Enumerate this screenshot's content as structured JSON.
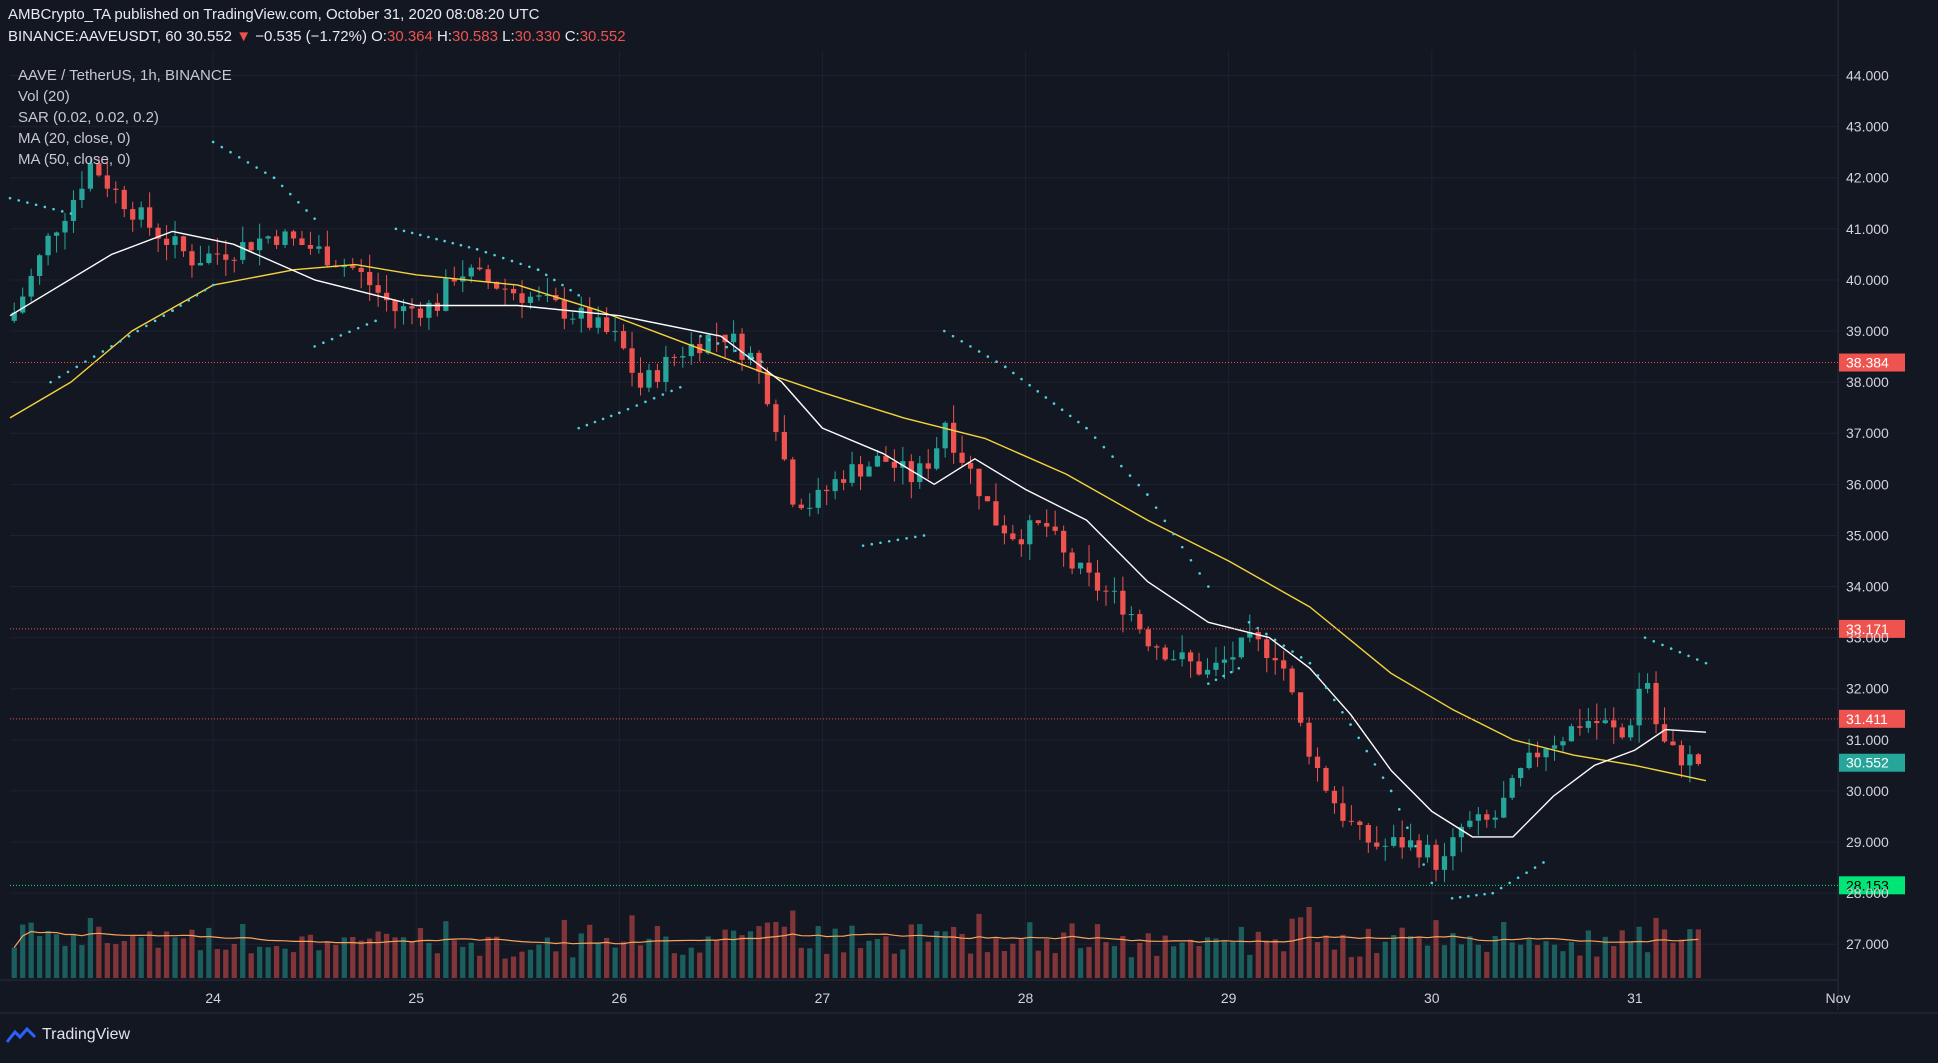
{
  "header": {
    "publisher": "AMBCrypto_TA published on TradingView.com, October 31, 2020 08:08:20 UTC",
    "symbol": "BINANCE:AAVEUSDT, 60",
    "last": "30.552",
    "change_arrow": "▼",
    "change": "−0.535 (−1.72%)",
    "o_label": "O:",
    "o": "30.364",
    "h_label": "H:",
    "h": "30.583",
    "l_label": "L:",
    "l": "30.330",
    "c_label": "C:",
    "c": "30.552"
  },
  "legend": {
    "title": "AAVE / TetherUS, 1h, BINANCE",
    "vol": "Vol (20)",
    "sar": "SAR (0.02, 0.02, 0.2)",
    "ma20": "MA (20, close, 0)",
    "ma50": "MA (50, close, 0)"
  },
  "footer": {
    "brand": "TradingView"
  },
  "colors": {
    "background": "#131722",
    "up": "#26a69a",
    "down": "#ef5350",
    "ma20": "#ffffff",
    "ma50": "#f5d33b",
    "sar": "#4dd0e1",
    "vol_ma": "#f7a35c",
    "green_level": "#00e676"
  },
  "chart_data": {
    "type": "candlestick",
    "title": "AAVE / TetherUS, 1h, BINANCE",
    "ylim": [
      26.3,
      44.5
    ],
    "y_ticks": [
      "44.000",
      "43.000",
      "42.000",
      "41.000",
      "40.000",
      "39.000",
      "38.000",
      "37.000",
      "36.000",
      "35.000",
      "34.000",
      "33.000",
      "32.000",
      "31.000",
      "30.000",
      "29.000",
      "28.000",
      "27.000"
    ],
    "x_ticks": [
      "24",
      "25",
      "26",
      "27",
      "28",
      "29",
      "30",
      "31",
      "Nov"
    ],
    "x_range_days": [
      23.0,
      32.0
    ],
    "horizontal_levels": [
      {
        "value": 38.384,
        "label": "38.384",
        "color": "#ef5350",
        "style": "dotted"
      },
      {
        "value": 33.171,
        "label": "33.171",
        "color": "#ef5350",
        "style": "dotted"
      },
      {
        "value": 31.411,
        "label": "31.411",
        "color": "#ef5350",
        "style": "dotted"
      },
      {
        "value": 28.153,
        "label": "28.153",
        "color": "#00e676",
        "style": "dotted"
      }
    ],
    "last_price": {
      "value": 30.552,
      "label": "30.552"
    },
    "price_path": [
      [
        23.0,
        39.2
      ],
      [
        23.1,
        40.0
      ],
      [
        23.2,
        40.9
      ],
      [
        23.3,
        41.5
      ],
      [
        23.4,
        42.3
      ],
      [
        23.5,
        41.8
      ],
      [
        23.7,
        41.0
      ],
      [
        23.9,
        40.4
      ],
      [
        24.1,
        40.6
      ],
      [
        24.3,
        40.9
      ],
      [
        24.5,
        40.6
      ],
      [
        24.7,
        40.2
      ],
      [
        24.9,
        39.4
      ],
      [
        25.1,
        39.5
      ],
      [
        25.2,
        40.2
      ],
      [
        25.4,
        39.9
      ],
      [
        25.6,
        39.6
      ],
      [
        25.8,
        39.3
      ],
      [
        26.0,
        38.8
      ],
      [
        26.1,
        37.9
      ],
      [
        26.3,
        38.6
      ],
      [
        26.5,
        39.0
      ],
      [
        26.65,
        38.5
      ],
      [
        26.75,
        37.6
      ],
      [
        26.85,
        35.8
      ],
      [
        26.95,
        35.6
      ],
      [
        27.1,
        36.2
      ],
      [
        27.3,
        36.5
      ],
      [
        27.45,
        36.1
      ],
      [
        27.55,
        36.6
      ],
      [
        27.6,
        37.3
      ],
      [
        27.65,
        36.8
      ],
      [
        27.75,
        36.1
      ],
      [
        27.85,
        35.3
      ],
      [
        27.95,
        35.0
      ],
      [
        28.1,
        35.2
      ],
      [
        28.2,
        34.5
      ],
      [
        28.35,
        34.0
      ],
      [
        28.5,
        33.6
      ],
      [
        28.6,
        33.0
      ],
      [
        28.75,
        32.6
      ],
      [
        28.9,
        32.3
      ],
      [
        29.1,
        32.9
      ],
      [
        29.25,
        32.7
      ],
      [
        29.35,
        31.3
      ],
      [
        29.45,
        30.3
      ],
      [
        29.55,
        29.6
      ],
      [
        29.65,
        29.1
      ],
      [
        29.75,
        28.9
      ],
      [
        29.85,
        29.0
      ],
      [
        29.95,
        28.9
      ],
      [
        30.05,
        28.5
      ],
      [
        30.15,
        29.3
      ],
      [
        30.3,
        29.4
      ],
      [
        30.45,
        30.4
      ],
      [
        30.55,
        30.9
      ],
      [
        30.65,
        31.1
      ],
      [
        30.75,
        31.4
      ],
      [
        30.85,
        31.3
      ],
      [
        30.95,
        31.0
      ],
      [
        31.05,
        32.4
      ],
      [
        31.12,
        31.0
      ],
      [
        31.2,
        30.7
      ],
      [
        31.32,
        30.55
      ]
    ],
    "ma_points": {
      "ma20": [
        [
          23.0,
          39.3
        ],
        [
          23.5,
          40.5
        ],
        [
          23.8,
          40.95
        ],
        [
          24.1,
          40.7
        ],
        [
          24.5,
          40.0
        ],
        [
          25.0,
          39.5
        ],
        [
          25.5,
          39.5
        ],
        [
          26.0,
          39.3
        ],
        [
          26.5,
          38.9
        ],
        [
          26.8,
          38.0
        ],
        [
          27.0,
          37.1
        ],
        [
          27.3,
          36.6
        ],
        [
          27.55,
          36.0
        ],
        [
          27.75,
          36.5
        ],
        [
          28.0,
          35.9
        ],
        [
          28.3,
          35.3
        ],
        [
          28.6,
          34.1
        ],
        [
          28.9,
          33.3
        ],
        [
          29.2,
          33.0
        ],
        [
          29.4,
          32.4
        ],
        [
          29.6,
          31.5
        ],
        [
          29.8,
          30.4
        ],
        [
          30.0,
          29.6
        ],
        [
          30.2,
          29.1
        ],
        [
          30.4,
          29.1
        ],
        [
          30.6,
          29.9
        ],
        [
          30.8,
          30.5
        ],
        [
          31.0,
          30.8
        ],
        [
          31.15,
          31.2
        ],
        [
          31.35,
          31.15
        ]
      ],
      "ma50": [
        [
          23.0,
          37.3
        ],
        [
          23.3,
          38.0
        ],
        [
          23.6,
          39.0
        ],
        [
          24.0,
          39.9
        ],
        [
          24.4,
          40.2
        ],
        [
          24.7,
          40.3
        ],
        [
          25.0,
          40.1
        ],
        [
          25.5,
          39.9
        ],
        [
          25.9,
          39.4
        ],
        [
          26.3,
          38.8
        ],
        [
          26.7,
          38.2
        ],
        [
          27.0,
          37.8
        ],
        [
          27.4,
          37.3
        ],
        [
          27.8,
          36.9
        ],
        [
          28.2,
          36.2
        ],
        [
          28.6,
          35.3
        ],
        [
          29.0,
          34.5
        ],
        [
          29.4,
          33.6
        ],
        [
          29.8,
          32.3
        ],
        [
          30.1,
          31.6
        ],
        [
          30.4,
          31.0
        ],
        [
          30.7,
          30.7
        ],
        [
          31.0,
          30.5
        ],
        [
          31.35,
          30.2
        ]
      ]
    },
    "sar_segments": [
      [
        [
          23.0,
          41.6
        ],
        [
          23.3,
          41.3
        ]
      ],
      [
        [
          23.2,
          38.0
        ],
        [
          23.5,
          38.7
        ],
        [
          23.8,
          39.4
        ],
        [
          24.0,
          39.9
        ]
      ],
      [
        [
          24.0,
          42.7
        ],
        [
          24.3,
          42.0
        ],
        [
          24.5,
          41.2
        ]
      ],
      [
        [
          24.5,
          38.7
        ],
        [
          24.8,
          39.2
        ]
      ],
      [
        [
          24.9,
          41.0
        ],
        [
          25.3,
          40.6
        ],
        [
          25.6,
          40.2
        ],
        [
          25.8,
          39.7
        ]
      ],
      [
        [
          25.8,
          37.1
        ],
        [
          26.0,
          37.4
        ],
        [
          26.3,
          37.9
        ]
      ],
      [
        [
          26.4,
          38.9
        ],
        [
          26.7,
          38.4
        ]
      ],
      [
        [
          27.2,
          34.8
        ],
        [
          27.5,
          35.0
        ]
      ],
      [
        [
          27.6,
          39.0
        ],
        [
          27.9,
          38.3
        ],
        [
          28.3,
          37.1
        ],
        [
          28.6,
          35.8
        ],
        [
          28.9,
          34.0
        ]
      ],
      [
        [
          28.9,
          32.1
        ],
        [
          29.05,
          32.4
        ]
      ],
      [
        [
          29.1,
          33.3
        ],
        [
          29.4,
          32.5
        ],
        [
          29.6,
          31.3
        ],
        [
          29.8,
          30.0
        ],
        [
          30.0,
          28.2
        ]
      ],
      [
        [
          30.1,
          27.9
        ],
        [
          30.3,
          28.0
        ],
        [
          30.55,
          28.6
        ]
      ],
      [
        [
          31.05,
          33.0
        ],
        [
          31.35,
          32.5
        ]
      ]
    ],
    "volume": {
      "note": "Volume bars, relative heights (0-1) per 1h candle, colored by candle direction",
      "max_rel": 1.0
    }
  }
}
